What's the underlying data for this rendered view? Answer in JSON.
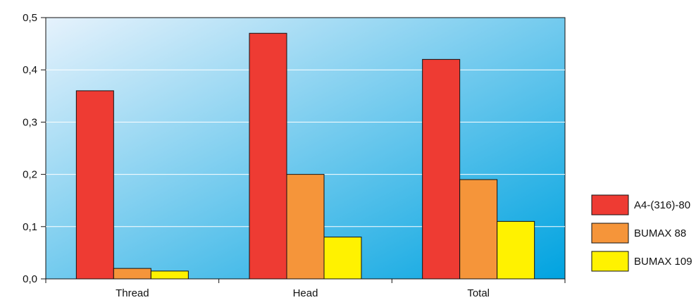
{
  "chart_data": {
    "type": "bar",
    "categories": [
      "Thread",
      "Head",
      "Total"
    ],
    "series": [
      {
        "name": "A4-(316)-80",
        "values": [
          0.36,
          0.47,
          0.42
        ],
        "color": "#ee3b33"
      },
      {
        "name": "BUMAX 88",
        "values": [
          0.02,
          0.2,
          0.19
        ],
        "color": "#f5953a"
      },
      {
        "name": "BUMAX 109",
        "values": [
          0.015,
          0.08,
          0.11
        ],
        "color": "#fff200"
      }
    ],
    "ylim": [
      0,
      0.5
    ],
    "yticks": [
      "0,0",
      "0,1",
      "0,2",
      "0,3",
      "0,4",
      "0,5"
    ],
    "ytick_values": [
      0,
      0.1,
      0.2,
      0.3,
      0.4,
      0.5
    ],
    "title": "",
    "xlabel": "",
    "ylabel": "",
    "grid": true,
    "legend": "right",
    "background_gradient": [
      "#e6f2fc",
      "#00a3e0"
    ]
  }
}
